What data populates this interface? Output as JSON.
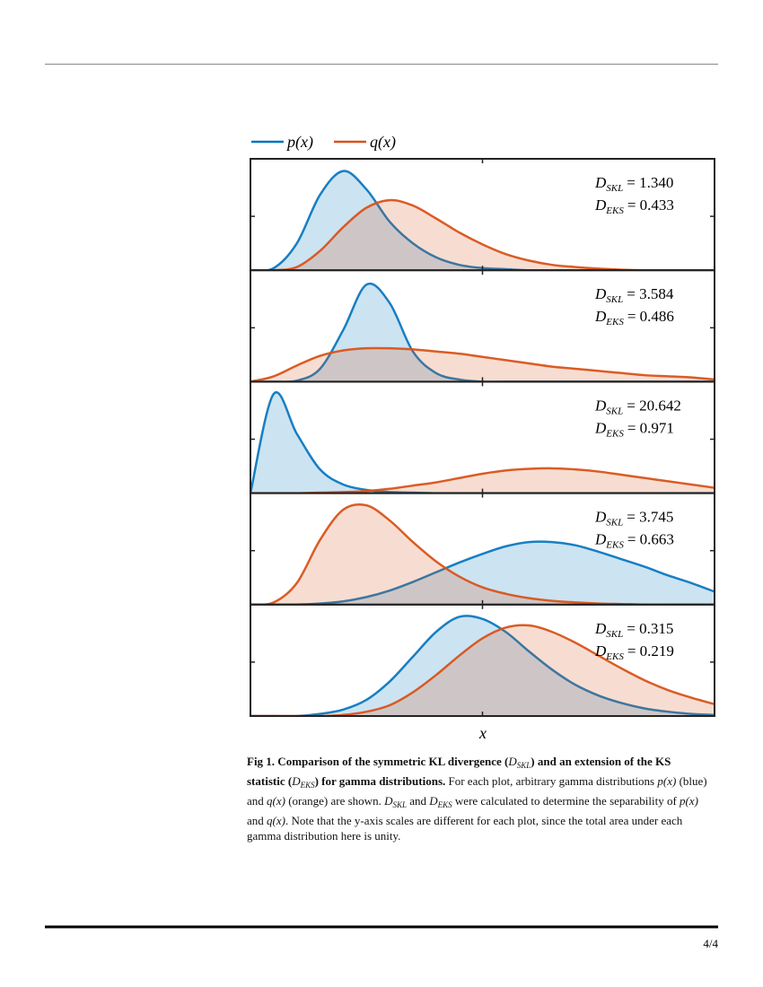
{
  "figure": {
    "legend": [
      {
        "name": "p(x)",
        "color": "#0072BD",
        "fill": "#0072BD"
      },
      {
        "name": "q(x)",
        "color": "#D95319",
        "fill": "#D95319"
      }
    ],
    "xlabel": "x"
  },
  "chart_data": [
    {
      "type": "area",
      "xlim": [
        0,
        1
      ],
      "ylim": [
        0,
        1
      ],
      "xticks": [
        0.5
      ],
      "yticks": [
        0.5
      ],
      "x": [
        0,
        0.05,
        0.1,
        0.15,
        0.2,
        0.25,
        0.3,
        0.35,
        0.4,
        0.45,
        0.5,
        0.55,
        0.6,
        0.65,
        0.7,
        0.75,
        0.8,
        0.85,
        0.9,
        0.95,
        1
      ],
      "series": [
        {
          "values": [
            0,
            0.02,
            0.25,
            0.7,
            0.92,
            0.75,
            0.45,
            0.25,
            0.12,
            0.05,
            0.02,
            0.01,
            0,
            0,
            0,
            0,
            0,
            0,
            0,
            0,
            0
          ]
        },
        {
          "values": [
            0,
            0,
            0.03,
            0.18,
            0.4,
            0.58,
            0.65,
            0.6,
            0.48,
            0.35,
            0.24,
            0.15,
            0.09,
            0.05,
            0.03,
            0.015,
            0.005,
            0,
            0,
            0,
            0
          ]
        }
      ],
      "annotations": [
        {
          "symbol": "D",
          "sub": "SKL",
          "value": "= 1.340"
        },
        {
          "symbol": "D",
          "sub": "EKS",
          "value": "= 0.433"
        }
      ]
    },
    {
      "type": "area",
      "xlim": [
        0,
        1
      ],
      "ylim": [
        0,
        1
      ],
      "xticks": [
        0.5
      ],
      "yticks": [
        0.5
      ],
      "x": [
        0,
        0.05,
        0.1,
        0.15,
        0.2,
        0.25,
        0.3,
        0.35,
        0.4,
        0.45,
        0.5,
        0.55,
        0.6,
        0.65,
        0.7,
        0.75,
        0.8,
        0.85,
        0.9,
        0.95,
        1
      ],
      "series": [
        {
          "values": [
            0,
            0,
            0.01,
            0.12,
            0.48,
            0.9,
            0.73,
            0.28,
            0.08,
            0.02,
            0,
            0,
            0,
            0,
            0,
            0,
            0,
            0,
            0,
            0,
            0
          ]
        },
        {
          "values": [
            0,
            0.05,
            0.15,
            0.24,
            0.29,
            0.31,
            0.31,
            0.3,
            0.28,
            0.26,
            0.23,
            0.2,
            0.17,
            0.14,
            0.12,
            0.1,
            0.08,
            0.06,
            0.05,
            0.04,
            0.02
          ]
        }
      ],
      "annotations": [
        {
          "symbol": "D",
          "sub": "SKL",
          "value": "= 3.584"
        },
        {
          "symbol": "D",
          "sub": "EKS",
          "value": "= 0.486"
        }
      ]
    },
    {
      "type": "area",
      "xlim": [
        0,
        1
      ],
      "ylim": [
        0,
        1
      ],
      "xticks": [
        0.5
      ],
      "yticks": [
        0.5
      ],
      "x": [
        0,
        0.05,
        0.1,
        0.15,
        0.2,
        0.25,
        0.3,
        0.35,
        0.4,
        0.45,
        0.5,
        0.55,
        0.6,
        0.65,
        0.7,
        0.75,
        0.8,
        0.85,
        0.9,
        0.95,
        1
      ],
      "series": [
        {
          "values": [
            0,
            0.92,
            0.55,
            0.22,
            0.08,
            0.03,
            0.01,
            0.005,
            0,
            0,
            0,
            0,
            0,
            0,
            0,
            0,
            0,
            0,
            0,
            0,
            0
          ]
        },
        {
          "values": [
            0,
            0,
            0,
            0.005,
            0.01,
            0.02,
            0.04,
            0.07,
            0.1,
            0.14,
            0.18,
            0.21,
            0.225,
            0.23,
            0.22,
            0.2,
            0.17,
            0.14,
            0.11,
            0.08,
            0.05
          ]
        }
      ],
      "annotations": [
        {
          "symbol": "D",
          "sub": "SKL",
          "value": "= 20.642"
        },
        {
          "symbol": "D",
          "sub": "EKS",
          "value": "= 0.971"
        }
      ]
    },
    {
      "type": "area",
      "xlim": [
        0,
        1
      ],
      "ylim": [
        0,
        1
      ],
      "xticks": [
        0.5
      ],
      "yticks": [
        0.5
      ],
      "x": [
        0,
        0.05,
        0.1,
        0.15,
        0.2,
        0.25,
        0.3,
        0.35,
        0.4,
        0.45,
        0.5,
        0.55,
        0.6,
        0.65,
        0.7,
        0.75,
        0.8,
        0.85,
        0.9,
        0.95,
        1
      ],
      "series": [
        {
          "values": [
            0,
            0,
            0,
            0.01,
            0.03,
            0.07,
            0.13,
            0.21,
            0.3,
            0.39,
            0.47,
            0.54,
            0.58,
            0.58,
            0.55,
            0.49,
            0.42,
            0.35,
            0.27,
            0.2,
            0.12
          ]
        },
        {
          "values": [
            0,
            0.02,
            0.2,
            0.6,
            0.88,
            0.92,
            0.78,
            0.58,
            0.4,
            0.26,
            0.16,
            0.1,
            0.06,
            0.035,
            0.02,
            0.01,
            0.005,
            0,
            0,
            0,
            0
          ]
        }
      ],
      "annotations": [
        {
          "symbol": "D",
          "sub": "SKL",
          "value": "= 3.745"
        },
        {
          "symbol": "D",
          "sub": "EKS",
          "value": "= 0.663"
        }
      ]
    },
    {
      "type": "area",
      "xlim": [
        0,
        1
      ],
      "ylim": [
        0,
        1
      ],
      "xticks": [
        0.5
      ],
      "yticks": [
        0.5
      ],
      "x": [
        0,
        0.05,
        0.1,
        0.15,
        0.2,
        0.25,
        0.3,
        0.35,
        0.4,
        0.45,
        0.5,
        0.55,
        0.6,
        0.65,
        0.7,
        0.75,
        0.8,
        0.85,
        0.9,
        0.95,
        1
      ],
      "series": [
        {
          "values": [
            0,
            0,
            0,
            0.02,
            0.06,
            0.15,
            0.32,
            0.55,
            0.78,
            0.92,
            0.9,
            0.78,
            0.6,
            0.43,
            0.29,
            0.19,
            0.12,
            0.07,
            0.04,
            0.02,
            0.01
          ]
        },
        {
          "values": [
            0,
            0,
            0,
            0,
            0.01,
            0.04,
            0.1,
            0.22,
            0.38,
            0.56,
            0.72,
            0.82,
            0.84,
            0.78,
            0.68,
            0.56,
            0.44,
            0.33,
            0.24,
            0.17,
            0.11
          ]
        }
      ],
      "annotations": [
        {
          "symbol": "D",
          "sub": "SKL",
          "value": "= 0.315"
        },
        {
          "symbol": "D",
          "sub": "EKS",
          "value": "= 0.219"
        }
      ]
    }
  ],
  "caption": {
    "segments": [
      {
        "text": "Fig 1. Comparison of the symmetric KL divergence (",
        "style": "bold"
      },
      {
        "text": "D",
        "style": "math"
      },
      {
        "text": "SKL",
        "style": "sub"
      },
      {
        "text": ") and an extension of the KS statistic (",
        "style": "bold"
      },
      {
        "text": "D",
        "style": "math"
      },
      {
        "text": "EKS",
        "style": "sub"
      },
      {
        "text": ") for gamma distributions.",
        "style": "bold"
      },
      {
        "text": " For each plot, arbitrary gamma distributions ",
        "style": "plain"
      },
      {
        "text": "p(x)",
        "style": "math"
      },
      {
        "text": " (blue) and ",
        "style": "plain"
      },
      {
        "text": "q(x)",
        "style": "math"
      },
      {
        "text": " (orange) are shown. ",
        "style": "plain"
      },
      {
        "text": "D",
        "style": "math"
      },
      {
        "text": "SKL",
        "style": "sub"
      },
      {
        "text": " and ",
        "style": "plain"
      },
      {
        "text": "D",
        "style": "math"
      },
      {
        "text": "EKS",
        "style": "sub"
      },
      {
        "text": " were calculated to determine the separability of ",
        "style": "plain"
      },
      {
        "text": "p(x)",
        "style": "math"
      },
      {
        "text": " and ",
        "style": "plain"
      },
      {
        "text": "q(x)",
        "style": "math"
      },
      {
        "text": ". Note that the y-axis scales are different for each plot, since the total area under each gamma distribution here is unity.",
        "style": "plain"
      }
    ]
  },
  "footer": {
    "page": "4/4"
  }
}
